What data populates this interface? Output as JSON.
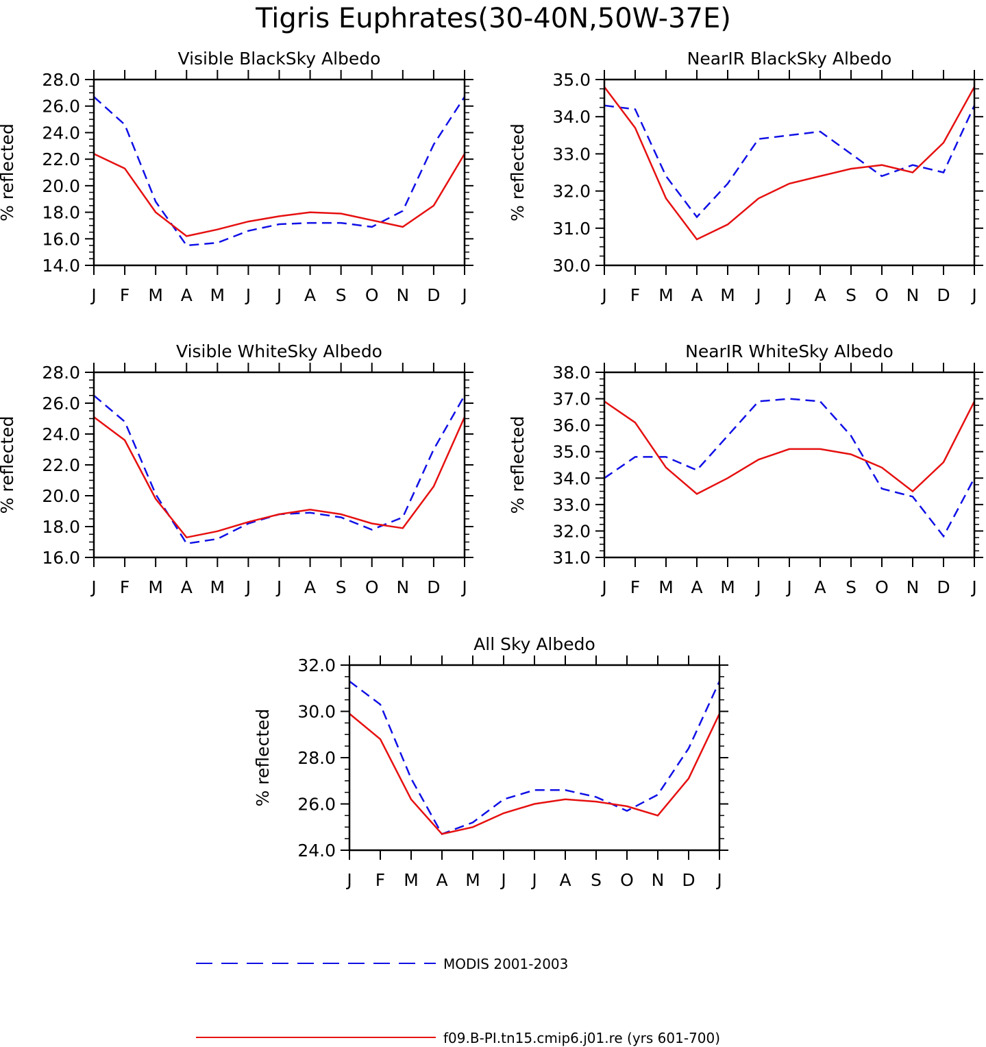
{
  "page": {
    "title": "Tigris Euphrates(30-40N,50W-37E)"
  },
  "legend": [
    {
      "label": "MODIS 2001-2003",
      "color": "#1010e6",
      "dash": true
    },
    {
      "label": "f09.B-PI.tn15.cmip6.j01.re (yrs 601-700)",
      "color": "#e61010",
      "dash": false
    }
  ],
  "chart_data": [
    {
      "type": "line",
      "title": "Visible BlackSky Albedo",
      "xlabel": "",
      "ylabel": "% reflected",
      "categories": [
        "J",
        "F",
        "M",
        "A",
        "M",
        "J",
        "J",
        "A",
        "S",
        "O",
        "N",
        "D",
        "J"
      ],
      "ylim": [
        14.0,
        28.0
      ],
      "yticks": [
        "14.0",
        "16.0",
        "18.0",
        "20.0",
        "22.0",
        "24.0",
        "26.0",
        "28.0"
      ],
      "grid": false,
      "series": [
        {
          "name": "MODIS 2001-2003",
          "values": [
            26.7,
            24.6,
            18.8,
            15.5,
            15.7,
            16.6,
            17.1,
            17.2,
            17.2,
            16.9,
            18.1,
            23.1,
            26.7
          ]
        },
        {
          "name": "f09.B-PI.tn15.cmip6.j01.re (yrs 601-700)",
          "values": [
            22.4,
            21.3,
            18.0,
            16.2,
            16.7,
            17.3,
            17.7,
            18.0,
            17.9,
            17.4,
            16.9,
            18.5,
            22.4
          ]
        }
      ]
    },
    {
      "type": "line",
      "title": "NearIR BlackSky Albedo",
      "xlabel": "",
      "ylabel": "% reflected",
      "categories": [
        "J",
        "F",
        "M",
        "A",
        "M",
        "J",
        "J",
        "A",
        "S",
        "O",
        "N",
        "D",
        "J"
      ],
      "ylim": [
        30.0,
        35.0
      ],
      "yticks": [
        "30.0",
        "31.0",
        "32.0",
        "33.0",
        "34.0",
        "35.0"
      ],
      "grid": false,
      "series": [
        {
          "name": "MODIS 2001-2003",
          "values": [
            34.3,
            34.2,
            32.4,
            31.3,
            32.2,
            33.4,
            33.5,
            33.6,
            33.0,
            32.4,
            32.7,
            32.5,
            34.3
          ]
        },
        {
          "name": "f09.B-PI.tn15.cmip6.j01.re (yrs 601-700)",
          "values": [
            34.8,
            33.7,
            31.8,
            30.7,
            31.1,
            31.8,
            32.2,
            32.4,
            32.6,
            32.7,
            32.5,
            33.3,
            34.8
          ]
        }
      ]
    },
    {
      "type": "line",
      "title": "Visible WhiteSky Albedo",
      "xlabel": "",
      "ylabel": "% reflected",
      "categories": [
        "J",
        "F",
        "M",
        "A",
        "M",
        "J",
        "J",
        "A",
        "S",
        "O",
        "N",
        "D",
        "J"
      ],
      "ylim": [
        16.0,
        28.0
      ],
      "yticks": [
        "16.0",
        "18.0",
        "20.0",
        "22.0",
        "24.0",
        "26.0",
        "28.0"
      ],
      "grid": false,
      "series": [
        {
          "name": "MODIS 2001-2003",
          "values": [
            26.5,
            24.8,
            20.1,
            16.9,
            17.2,
            18.2,
            18.8,
            18.9,
            18.6,
            17.8,
            18.6,
            23.0,
            26.5
          ]
        },
        {
          "name": "f09.B-PI.tn15.cmip6.j01.re (yrs 601-700)",
          "values": [
            25.1,
            23.6,
            19.8,
            17.3,
            17.7,
            18.3,
            18.8,
            19.1,
            18.8,
            18.2,
            17.9,
            20.6,
            25.1
          ]
        }
      ]
    },
    {
      "type": "line",
      "title": "NearIR WhiteSky Albedo",
      "xlabel": "",
      "ylabel": "% reflected",
      "categories": [
        "J",
        "F",
        "M",
        "A",
        "M",
        "J",
        "J",
        "A",
        "S",
        "O",
        "N",
        "D",
        "J"
      ],
      "ylim": [
        31.0,
        38.0
      ],
      "yticks": [
        "31.0",
        "32.0",
        "33.0",
        "34.0",
        "35.0",
        "36.0",
        "37.0",
        "38.0"
      ],
      "grid": false,
      "series": [
        {
          "name": "MODIS 2001-2003",
          "values": [
            34.0,
            34.8,
            34.8,
            34.3,
            35.6,
            36.9,
            37.0,
            36.9,
            35.6,
            33.6,
            33.3,
            31.8,
            34.0
          ]
        },
        {
          "name": "f09.B-PI.tn15.cmip6.j01.re (yrs 601-700)",
          "values": [
            36.9,
            36.1,
            34.4,
            33.4,
            34.0,
            34.7,
            35.1,
            35.1,
            34.9,
            34.4,
            33.5,
            34.6,
            36.9
          ]
        }
      ]
    },
    {
      "type": "line",
      "title": "All Sky Albedo",
      "xlabel": "",
      "ylabel": "% reflected",
      "categories": [
        "J",
        "F",
        "M",
        "A",
        "M",
        "J",
        "J",
        "A",
        "S",
        "O",
        "N",
        "D",
        "J"
      ],
      "ylim": [
        24.0,
        32.0
      ],
      "yticks": [
        "24.0",
        "26.0",
        "28.0",
        "30.0",
        "32.0"
      ],
      "grid": false,
      "series": [
        {
          "name": "MODIS 2001-2003",
          "values": [
            31.3,
            30.3,
            27.1,
            24.7,
            25.2,
            26.2,
            26.6,
            26.6,
            26.3,
            25.7,
            26.4,
            28.4,
            31.3
          ]
        },
        {
          "name": "f09.B-PI.tn15.cmip6.j01.re (yrs 601-700)",
          "values": [
            29.9,
            28.8,
            26.2,
            24.7,
            25.0,
            25.6,
            26.0,
            26.2,
            26.1,
            25.9,
            25.5,
            27.1,
            29.9
          ]
        }
      ]
    }
  ]
}
